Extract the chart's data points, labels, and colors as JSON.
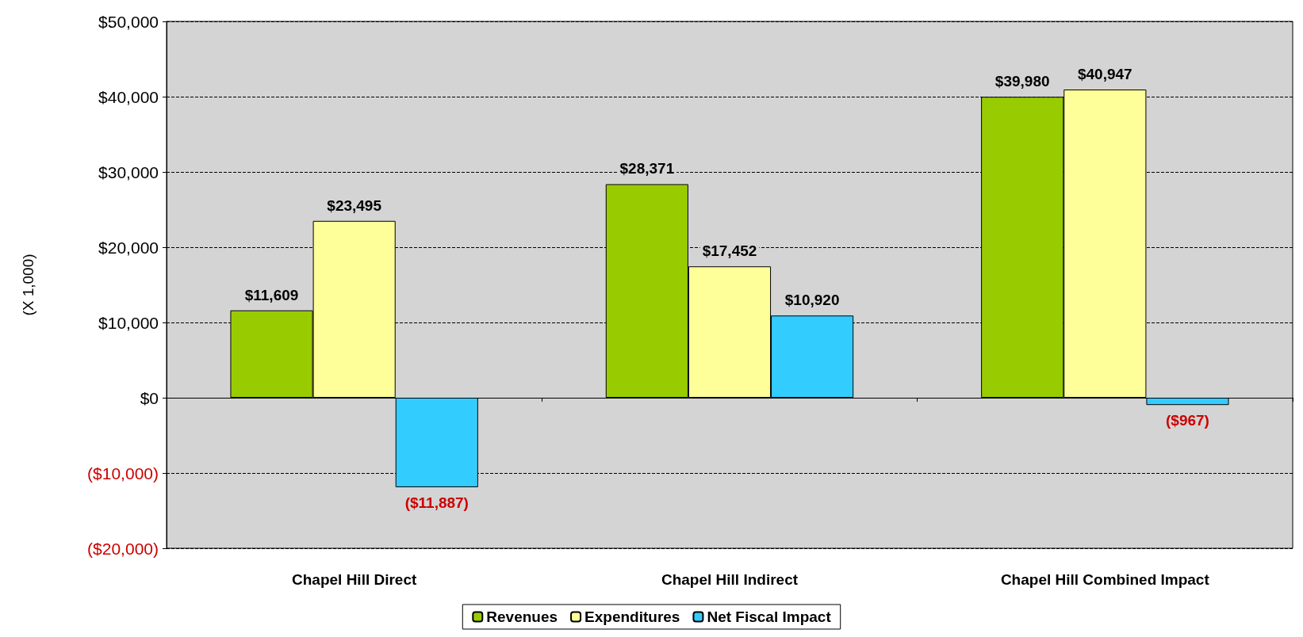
{
  "chart_data": {
    "type": "bar",
    "categories": [
      "Chapel Hill Direct",
      "Chapel Hill Indirect",
      "Chapel Hill Combined Impact"
    ],
    "ylabel": "(X 1,000)",
    "series": [
      {
        "name": "Revenues",
        "color": "#99cc00",
        "values": [
          11609,
          28371,
          39980
        ],
        "value_labels": [
          "$11,609",
          "$28,371",
          "$39,980"
        ]
      },
      {
        "name": "Expenditures",
        "color": "#ffff99",
        "values": [
          23495,
          17452,
          40947
        ],
        "value_labels": [
          "$23,495",
          "$17,452",
          "$40,947"
        ]
      },
      {
        "name": "Net Fiscal Impact",
        "color": "#33ccff",
        "values": [
          -11887,
          10920,
          -967
        ],
        "value_labels": [
          "($11,887)",
          "$10,920",
          "($967)"
        ]
      }
    ],
    "ylim": [
      -20000,
      50000
    ],
    "yticks": [
      {
        "value": -20000,
        "label": "($20,000)"
      },
      {
        "value": -10000,
        "label": "($10,000)"
      },
      {
        "value": 0,
        "label": "$0"
      },
      {
        "value": 10000,
        "label": "$10,000"
      },
      {
        "value": 20000,
        "label": "$20,000"
      },
      {
        "value": 30000,
        "label": "$30,000"
      },
      {
        "value": 40000,
        "label": "$40,000"
      },
      {
        "value": 50000,
        "label": "$50,000"
      }
    ],
    "grid": "y",
    "legend": "bottom"
  }
}
